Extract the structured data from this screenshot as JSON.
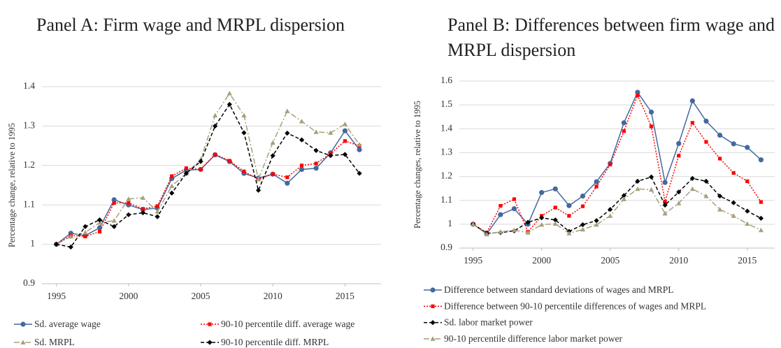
{
  "chart_data": [
    {
      "type": "line",
      "title": "Panel A: Firm wage and MRPL dispersion",
      "y_label": "Percentage change, relative to 1995",
      "x": [
        1995,
        1996,
        1997,
        1998,
        1999,
        2000,
        2001,
        2002,
        2003,
        2004,
        2005,
        2006,
        2007,
        2008,
        2009,
        2010,
        2011,
        2012,
        2013,
        2014,
        2015,
        2016
      ],
      "xlim": [
        1994,
        2017.5
      ],
      "xticks": [
        1995,
        2000,
        2005,
        2010,
        2015
      ],
      "ylim": [
        0.9,
        1.4
      ],
      "yticks": [
        0.9,
        1,
        1.1,
        1.2,
        1.3,
        1.4
      ],
      "grid": true,
      "legend": "bottom",
      "legend_columns": 2,
      "series": [
        {
          "name": "Sd. average wage",
          "color": "#44699d",
          "dash": "solid",
          "marker": "circle",
          "values": [
            1.0,
            1.028,
            1.022,
            1.042,
            1.113,
            1.1,
            1.088,
            1.092,
            1.167,
            1.188,
            1.19,
            1.227,
            1.21,
            1.18,
            1.168,
            1.178,
            1.155,
            1.19,
            1.193,
            1.232,
            1.288,
            1.24
          ]
        },
        {
          "name": "90-10 percentile diff. average wage",
          "color": "#ff0000",
          "dash": "dotted",
          "marker": "square",
          "values": [
            1.0,
            1.022,
            1.02,
            1.032,
            1.105,
            1.105,
            1.09,
            1.097,
            1.173,
            1.193,
            1.19,
            1.228,
            1.212,
            1.185,
            1.165,
            1.178,
            1.17,
            1.2,
            1.205,
            1.23,
            1.262,
            1.25
          ]
        },
        {
          "name": "Sd. MRPL",
          "color": "#a89f7c",
          "dash": "dashdot",
          "marker": "triangle",
          "values": [
            1.0,
            1.02,
            1.03,
            1.055,
            1.06,
            1.115,
            1.118,
            1.083,
            1.148,
            1.18,
            1.215,
            1.327,
            1.383,
            1.327,
            1.165,
            1.258,
            1.338,
            1.312,
            1.285,
            1.283,
            1.305,
            1.253
          ]
        },
        {
          "name": "90-10 percentile diff. MRPL",
          "color": "#000000",
          "dash": "dashed",
          "marker": "diamond",
          "values": [
            1.0,
            0.993,
            1.045,
            1.062,
            1.045,
            1.075,
            1.08,
            1.07,
            1.13,
            1.18,
            1.21,
            1.3,
            1.355,
            1.283,
            1.137,
            1.225,
            1.282,
            1.265,
            1.238,
            1.225,
            1.228,
            1.18
          ]
        }
      ]
    },
    {
      "type": "line",
      "title": "Panel B: Differences between firm wage and MRPL dispersion",
      "y_label": "Percentage changes, relative to 1995",
      "x": [
        1995,
        1996,
        1997,
        1998,
        1999,
        2000,
        2001,
        2002,
        2003,
        2004,
        2005,
        2006,
        2007,
        2008,
        2009,
        2010,
        2011,
        2012,
        2013,
        2014,
        2015,
        2016
      ],
      "xlim": [
        1994,
        2017
      ],
      "xticks": [
        1995,
        2000,
        2005,
        2010,
        2015
      ],
      "ylim": [
        0.9,
        1.6
      ],
      "yticks": [
        0.9,
        1,
        1.1,
        1.2,
        1.3,
        1.4,
        1.5,
        1.6
      ],
      "grid": true,
      "legend": "bottom",
      "legend_columns": 1,
      "series": [
        {
          "name": "Difference between standard deviations of wages and MRPL",
          "color": "#44699d",
          "dash": "solid",
          "marker": "circle",
          "values": [
            1.0,
            0.96,
            1.04,
            1.065,
            1.0,
            1.133,
            1.148,
            1.078,
            1.118,
            1.178,
            1.255,
            1.425,
            1.553,
            1.47,
            1.175,
            1.338,
            1.517,
            1.432,
            1.373,
            1.337,
            1.322,
            1.27
          ]
        },
        {
          "name": "Difference between 90-10 percentile differences of wages and MRPL",
          "color": "#ff0000",
          "dash": "dotted",
          "marker": "square",
          "values": [
            1.0,
            0.965,
            1.077,
            1.105,
            0.968,
            1.035,
            1.07,
            1.035,
            1.075,
            1.158,
            1.25,
            1.39,
            1.54,
            1.41,
            1.095,
            1.287,
            1.425,
            1.345,
            1.275,
            1.215,
            1.18,
            1.093
          ]
        },
        {
          "name": "Sd. labor market power",
          "color": "#000000",
          "dash": "dashed",
          "marker": "diamond",
          "values": [
            1.0,
            0.962,
            0.965,
            0.972,
            1.008,
            1.027,
            1.018,
            0.97,
            0.998,
            1.015,
            1.062,
            1.12,
            1.18,
            1.198,
            1.08,
            1.135,
            1.192,
            1.18,
            1.118,
            1.09,
            1.055,
            1.025
          ]
        },
        {
          "name": "90-10 percentile difference labor market power",
          "color": "#a89f7c",
          "dash": "dashdot",
          "marker": "triangle",
          "values": [
            1.0,
            0.958,
            0.968,
            0.975,
            0.965,
            0.998,
            1.002,
            0.962,
            0.978,
            0.998,
            1.035,
            1.105,
            1.148,
            1.145,
            1.045,
            1.088,
            1.148,
            1.118,
            1.062,
            1.035,
            1.002,
            0.975
          ]
        }
      ]
    }
  ]
}
